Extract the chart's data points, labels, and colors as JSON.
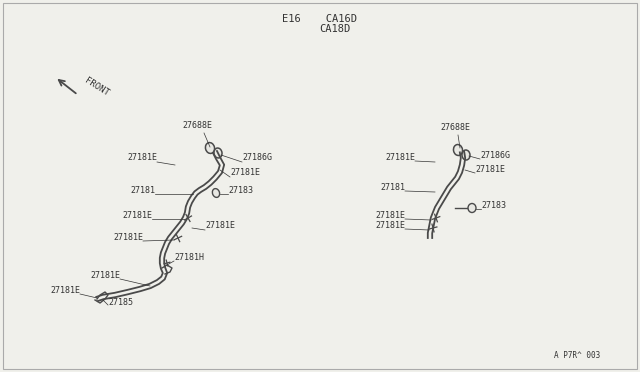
{
  "bg_color": "#f0f0eb",
  "border_color": "#aaaaaa",
  "line_color": "#4a4a4a",
  "text_color": "#333333",
  "title_line1": "E16    CA16D",
  "title_line2": "          CA18D",
  "front_label": "FRONT",
  "footer": "A P7R^ 003",
  "label_fontsize": 6.0
}
